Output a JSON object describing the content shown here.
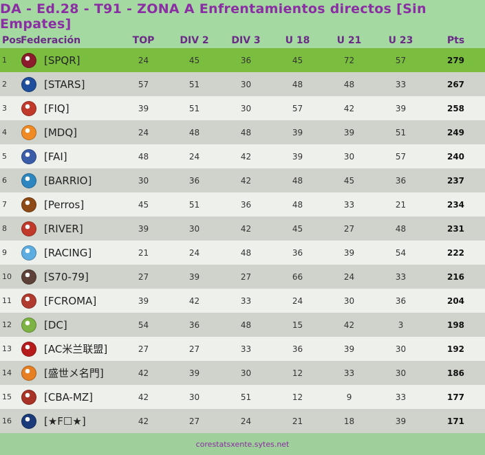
{
  "title": "DA - Ed.28 - T91 - ZONA  A Enfrentamientos directos [Sin Empates]",
  "headers": [
    "Pos",
    "Federación",
    "TOP",
    "DIV 2",
    "DIV 3",
    "U 18",
    "U 21",
    "U 23",
    "Pts"
  ],
  "rows": [
    {
      "pos": "1",
      "name": "[SPQR]",
      "top": "24",
      "div2": "45",
      "div3": "36",
      "u18": "45",
      "u21": "72",
      "u23": "57",
      "pts": "279",
      "logo_icon": "spqr-emblem-icon",
      "logo_color": "#8a1c2b"
    },
    {
      "pos": "2",
      "name": "[STARS]",
      "top": "57",
      "div2": "51",
      "div3": "30",
      "u18": "48",
      "u21": "48",
      "u23": "33",
      "pts": "267",
      "logo_icon": "star-shield-icon",
      "logo_color": "#1f4e9c"
    },
    {
      "pos": "3",
      "name": "[FIQ]",
      "top": "39",
      "div2": "51",
      "div3": "30",
      "u18": "57",
      "u21": "42",
      "u23": "39",
      "pts": "258",
      "logo_icon": "fiq-crest-icon",
      "logo_color": "#c0392b"
    },
    {
      "pos": "4",
      "name": "[MDQ]",
      "top": "24",
      "div2": "48",
      "div3": "48",
      "u18": "39",
      "u21": "39",
      "u23": "51",
      "pts": "249",
      "logo_icon": "mdq-sun-icon",
      "logo_color": "#f08a24"
    },
    {
      "pos": "5",
      "name": "[FAI]",
      "top": "48",
      "div2": "24",
      "div3": "42",
      "u18": "39",
      "u21": "30",
      "u23": "57",
      "pts": "240",
      "logo_icon": "fai-flag-icon",
      "logo_color": "#3b5ca8"
    },
    {
      "pos": "6",
      "name": "[BARRIO]",
      "top": "30",
      "div2": "36",
      "div3": "42",
      "u18": "48",
      "u21": "45",
      "u23": "36",
      "pts": "237",
      "logo_icon": "barrio-badge-icon",
      "logo_color": "#2e86c1"
    },
    {
      "pos": "7",
      "name": "[Perros]",
      "top": "45",
      "div2": "51",
      "div3": "36",
      "u18": "48",
      "u21": "33",
      "u23": "21",
      "pts": "234",
      "logo_icon": "perros-badge-icon",
      "logo_color": "#8e4a16"
    },
    {
      "pos": "8",
      "name": "[RIVER]",
      "top": "39",
      "div2": "30",
      "div3": "42",
      "u18": "45",
      "u21": "27",
      "u23": "48",
      "pts": "231",
      "logo_icon": "river-badge-icon",
      "logo_color": "#c0392b"
    },
    {
      "pos": "9",
      "name": "[RACING]",
      "top": "21",
      "div2": "24",
      "div3": "48",
      "u18": "36",
      "u21": "39",
      "u23": "54",
      "pts": "222",
      "logo_icon": "racing-badge-icon",
      "logo_color": "#5dade2"
    },
    {
      "pos": "10",
      "name": "[S70-79]",
      "top": "27",
      "div2": "39",
      "div3": "27",
      "u18": "66",
      "u21": "24",
      "u23": "33",
      "pts": "216",
      "logo_icon": "s70-shield-icon",
      "logo_color": "#5d4037"
    },
    {
      "pos": "11",
      "name": "[FCROMA]",
      "top": "39",
      "div2": "42",
      "div3": "33",
      "u18": "24",
      "u21": "30",
      "u23": "36",
      "pts": "204",
      "logo_icon": "fcroma-badge-icon",
      "logo_color": "#b03a2e"
    },
    {
      "pos": "12",
      "name": "[DC]",
      "top": "54",
      "div2": "36",
      "div3": "48",
      "u18": "15",
      "u21": "42",
      "u23": "3",
      "pts": "198",
      "logo_icon": "dc-badge-icon",
      "logo_color": "#7cb342"
    },
    {
      "pos": "13",
      "name": "[AC米兰联盟]",
      "top": "27",
      "div2": "27",
      "div3": "33",
      "u18": "36",
      "u21": "39",
      "u23": "30",
      "pts": "192",
      "logo_icon": "acmilan-badge-icon",
      "logo_color": "#b71c1c"
    },
    {
      "pos": "14",
      "name": "[盛世メ名門]",
      "top": "42",
      "div2": "39",
      "div3": "30",
      "u18": "12",
      "u21": "33",
      "u23": "30",
      "pts": "186",
      "logo_icon": "dragon-badge-icon",
      "logo_color": "#e67e22"
    },
    {
      "pos": "15",
      "name": "[CBA-MZ]",
      "top": "42",
      "div2": "30",
      "div3": "51",
      "u18": "12",
      "u21": "9",
      "u23": "33",
      "pts": "177",
      "logo_icon": "cba-badge-icon",
      "logo_color": "#a93226"
    },
    {
      "pos": "16",
      "name": "[★F☐★]",
      "top": "42",
      "div2": "27",
      "div3": "24",
      "u18": "21",
      "u21": "18",
      "u23": "39",
      "pts": "171",
      "logo_icon": "boca-badge-icon",
      "logo_color": "#1a3a7a"
    }
  ],
  "footer": "corestatsxente.sytes.net"
}
